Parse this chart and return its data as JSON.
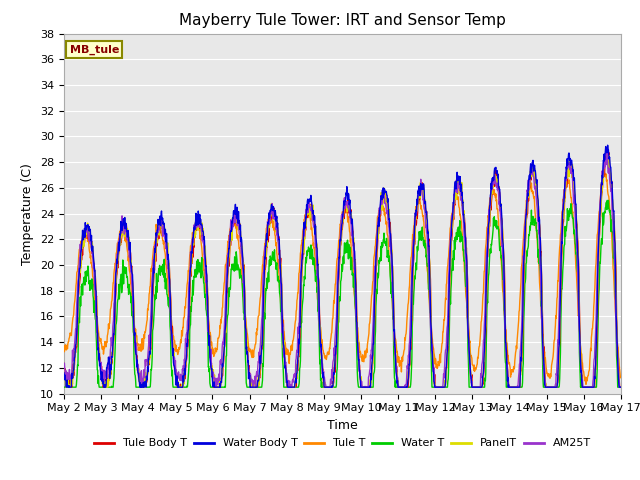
{
  "title": "Mayberry Tule Tower: IRT and Sensor Temp",
  "xlabel": "Time",
  "ylabel": "Temperature (C)",
  "ylim": [
    10,
    38
  ],
  "yticks": [
    10,
    12,
    14,
    16,
    18,
    20,
    22,
    24,
    26,
    28,
    30,
    32,
    34,
    36,
    38
  ],
  "xtick_labels": [
    "May 2",
    "May 3",
    "May 4",
    "May 5",
    "May 6",
    "May 7",
    "May 8",
    "May 9",
    "May 10",
    "May 11",
    "May 12",
    "May 13",
    "May 14",
    "May 15",
    "May 16",
    "May 17"
  ],
  "series_colors": {
    "Tule Body T": "#dd0000",
    "Water Body T": "#0000dd",
    "Tule T": "#ff8800",
    "Water T": "#00cc00",
    "PanelT": "#dddd00",
    "AM25T": "#9933cc"
  },
  "series_linewidth": 1.0,
  "legend_label": "MB_tule",
  "legend_box_facecolor": "#ffffcc",
  "legend_box_edgecolor": "#888800",
  "plot_bg_color": "#e8e8e8",
  "fig_bg_color": "#ffffff",
  "grid_color": "#ffffff",
  "title_fontsize": 11,
  "axis_label_fontsize": 9,
  "tick_fontsize": 8
}
